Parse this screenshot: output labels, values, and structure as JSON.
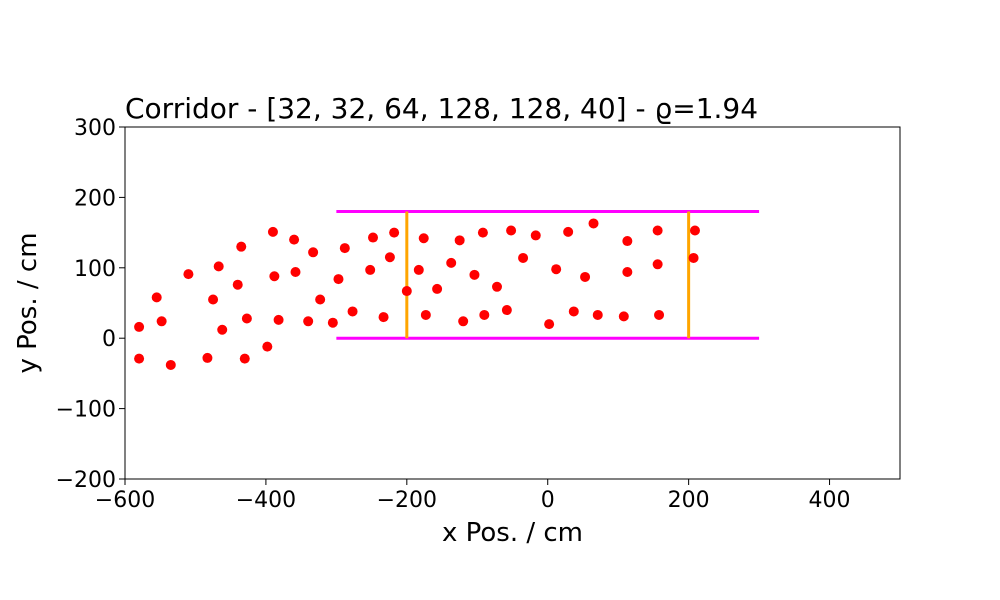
{
  "chart_data": {
    "type": "scatter",
    "title": "Corridor - [32, 32, 64, 128, 128, 40] - ϱ=1.94",
    "xlabel": "x Pos. / cm",
    "ylabel": "y Pos. / cm",
    "xlim": [
      -600,
      500
    ],
    "ylim": [
      -200,
      300
    ],
    "xticks": [
      -600,
      -400,
      -200,
      0,
      200,
      400
    ],
    "yticks": [
      -200,
      -100,
      0,
      100,
      200,
      300
    ],
    "xtick_labels": [
      "−600",
      "−400",
      "−200",
      "0",
      "200",
      "400"
    ],
    "ytick_labels": [
      "−200",
      "−100",
      "0",
      "100",
      "200",
      "300"
    ],
    "grid": false,
    "corridor_walls": {
      "color": "#ff00ff",
      "lines": [
        {
          "x": [
            -300,
            300
          ],
          "y": [
            0,
            0
          ]
        },
        {
          "x": [
            -300,
            300
          ],
          "y": [
            180,
            180
          ]
        }
      ]
    },
    "measurement_lines": {
      "color": "#ffa500",
      "lines": [
        {
          "x": [
            -200,
            -200
          ],
          "y": [
            0,
            180
          ]
        },
        {
          "x": [
            200,
            200
          ],
          "y": [
            0,
            180
          ]
        }
      ]
    },
    "series": [
      {
        "name": "pedestrians",
        "color": "#ff0000",
        "points": [
          [
            -580,
            16
          ],
          [
            -580,
            -29
          ],
          [
            -555,
            58
          ],
          [
            -548,
            24
          ],
          [
            -535,
            -38
          ],
          [
            -510,
            91
          ],
          [
            -483,
            -28
          ],
          [
            -475,
            55
          ],
          [
            -467,
            102
          ],
          [
            -462,
            12
          ],
          [
            -440,
            76
          ],
          [
            -435,
            130
          ],
          [
            -430,
            -29
          ],
          [
            -427,
            28
          ],
          [
            -398,
            -12
          ],
          [
            -390,
            151
          ],
          [
            -388,
            88
          ],
          [
            -382,
            26
          ],
          [
            -360,
            140
          ],
          [
            -358,
            94
          ],
          [
            -340,
            24
          ],
          [
            -333,
            122
          ],
          [
            -323,
            55
          ],
          [
            -305,
            22
          ],
          [
            -297,
            84
          ],
          [
            -288,
            128
          ],
          [
            -277,
            38
          ],
          [
            -252,
            97
          ],
          [
            -248,
            143
          ],
          [
            -233,
            30
          ],
          [
            -224,
            115
          ],
          [
            -218,
            150
          ],
          [
            -200,
            67
          ],
          [
            -183,
            97
          ],
          [
            -176,
            142
          ],
          [
            -173,
            33
          ],
          [
            -157,
            70
          ],
          [
            -137,
            107
          ],
          [
            -125,
            139
          ],
          [
            -120,
            24
          ],
          [
            -104,
            90
          ],
          [
            -92,
            150
          ],
          [
            -90,
            33
          ],
          [
            -72,
            73
          ],
          [
            -58,
            40
          ],
          [
            -52,
            153
          ],
          [
            -35,
            114
          ],
          [
            -17,
            146
          ],
          [
            2,
            20
          ],
          [
            12,
            98
          ],
          [
            29,
            151
          ],
          [
            37,
            38
          ],
          [
            53,
            87
          ],
          [
            65,
            163
          ],
          [
            71,
            33
          ],
          [
            108,
            31
          ],
          [
            113,
            138
          ],
          [
            113,
            94
          ],
          [
            156,
            153
          ],
          [
            156,
            105
          ],
          [
            158,
            33
          ],
          [
            207,
            114
          ],
          [
            209,
            153
          ]
        ]
      }
    ]
  }
}
